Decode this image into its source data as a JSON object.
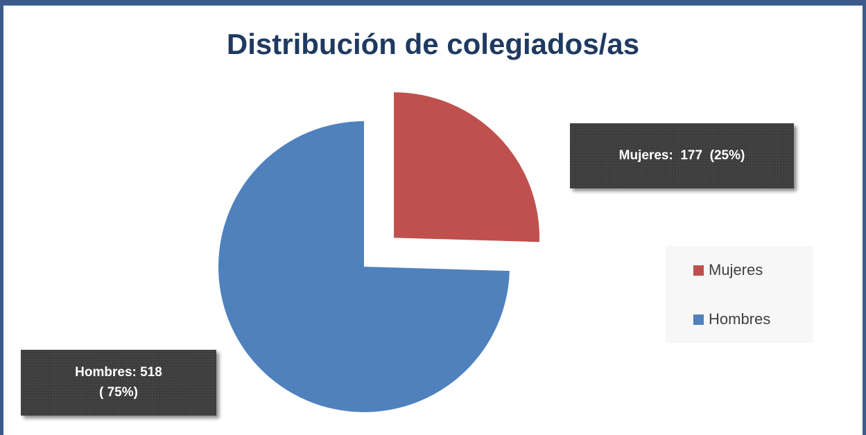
{
  "chart_data": {
    "type": "pie",
    "title": "Distribución de colegiados/as",
    "categories": [
      "Mujeres",
      "Hombres"
    ],
    "values": [
      177,
      518
    ],
    "value_labels": [
      "Mujeres:  177  (25%)",
      "Hombres: 518\n( 75%)"
    ],
    "colors": [
      "#c0504d",
      "#4f81bd"
    ],
    "exploded": [
      true,
      false
    ],
    "legend": "right"
  }
}
